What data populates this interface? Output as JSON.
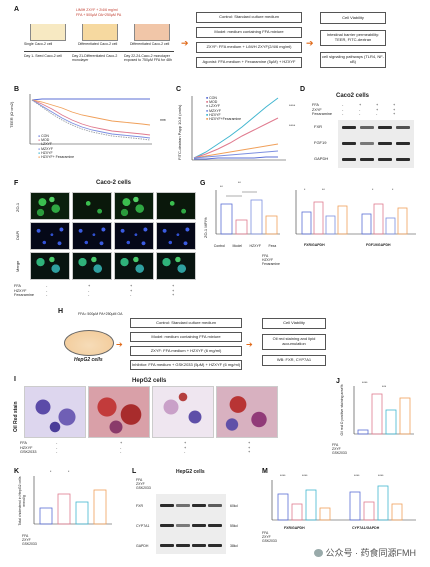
{
  "panels": {
    "A": "A",
    "B": "B",
    "C": "C",
    "D": "D",
    "F": "F",
    "G": "G",
    "H": "H",
    "I": "I",
    "J": "J",
    "K": "K",
    "L": "L",
    "M": "M"
  },
  "panelA": {
    "treat1": "LIMIH ZXYF + 2/4/6 mg/ml",
    "treat2": "FFA + 500μM OA+250μM PA",
    "steps": [
      "Single Caco-2 cell",
      "Differentiated Caco-2 cell",
      "Differentiated Caco-2 cell"
    ],
    "days": [
      "Day 1- Seed Caco-2 cell",
      "Day 21-Differentiated Caco-2 monolayer",
      "Day 22-24-Caco-2 monolayer exposed to 750μM FFA for 48h"
    ],
    "groups": [
      "Control: Standard culture medium",
      "Model: medium containing FFA mixture",
      "ZXYF: FFA medium + L/M/H ZXYF(2/4/6 mg/ml)",
      "Agonist: FFA medium + Fexaramine (5μM) + HZXYF"
    ],
    "outputs": [
      "Cell Viability",
      "Intestinal barrier permeability: TEER, FITC-dextran",
      "cell signaling pathways (TLR4, NF-κB)"
    ]
  },
  "panelB": {
    "ylabel": "TEER (Ω·cm2)",
    "legend": [
      "CON",
      "MOD",
      "LZXYF",
      "MZXYF",
      "HZXYF",
      "HZXYF+ Fexaramine"
    ],
    "sig": "***"
  },
  "panelC": {
    "ylabel": "FITC-dextran Papp 10-6 (cm/s)",
    "legend": [
      "CON",
      "MOD",
      "LZXYF",
      "MZXYF",
      "HZXYF",
      "HZXYF+Fexaramine"
    ],
    "sig": [
      "****",
      "****"
    ]
  },
  "panelD": {
    "title": "Caco2 cells",
    "rows": [
      "FFA",
      "ZXYF",
      "Fexaramine"
    ],
    "signs": [
      [
        "-",
        "+",
        "+",
        "+"
      ],
      [
        "-",
        "-",
        "+",
        "+"
      ],
      [
        "-",
        "-",
        "-",
        "+"
      ]
    ],
    "bands": [
      "FXR",
      "FGF19",
      "GAPDH"
    ]
  },
  "panelF": {
    "title": "Caco-2 cells",
    "rows": [
      "ZO-1",
      "DAPI",
      "Merge"
    ],
    "cond": [
      "FFA",
      "HZXYF",
      "Fexaramine"
    ],
    "signs": [
      [
        "-",
        "+",
        "+",
        "+"
      ],
      [
        "-",
        "-",
        "+",
        "+"
      ],
      [
        "-",
        "-",
        "-",
        "+"
      ]
    ]
  },
  "panelG": {
    "ylabel": "ZO-1 MFI%",
    "cats": [
      "Control",
      "Model",
      "HZXYF",
      "Fexa"
    ],
    "xlabels": [
      "FXR/GAPDH",
      "FGF19/GAPDH"
    ],
    "cond": [
      "FFA",
      "HZXYF",
      "Fexaramine"
    ],
    "sig": [
      "**",
      "**",
      "*",
      "**",
      "*",
      "*"
    ]
  },
  "panelH": {
    "treat": "FFA= 500μM PA+250μM OA",
    "cells": "HepG2 cells",
    "groups": [
      "Control: Standard culture medium",
      "Model: medium containing FFA mixture",
      "ZXYF: FFA medium + HZXYF (6 mg/ml)",
      "Inhibitor: FFA medium + GSK2033 (5μM) + HZXYF (6 mg/ml)"
    ],
    "outputs": [
      "Cell Viability",
      "Oil red staining and lipid accumulation",
      "WB: FXR, CYP7A1"
    ]
  },
  "panelI": {
    "title": "HepG2 cells",
    "ylabel": "Oil Red stain",
    "cond": [
      "FFA",
      "HZXYF",
      "GSK2033"
    ],
    "signs": [
      [
        "-",
        "+",
        "+",
        "+"
      ],
      [
        "-",
        "-",
        "+",
        "+"
      ],
      [
        "-",
        "-",
        "-",
        "+"
      ]
    ]
  },
  "panelJ": {
    "ylabel": "Oil red O positive staining area%",
    "cond": [
      "FFA",
      "ZXYF",
      "GSK2033"
    ],
    "sig": [
      "****",
      "***"
    ]
  },
  "panelK": {
    "ylabel": "Total cholesterol in HepG2 cells mmol/g",
    "cond": [
      "FFA",
      "ZXYF",
      "GSK2033"
    ],
    "sig": [
      "*",
      "*"
    ]
  },
  "panelL": {
    "title": "HepG2 cells",
    "rows": [
      "FFA",
      "ZXYF",
      "GSK2033"
    ],
    "bands": [
      "FXR",
      "CYP7A1",
      "GAPDH"
    ],
    "sizes": [
      "60kd",
      "55kd",
      "38kd"
    ]
  },
  "panelM": {
    "xlabels": [
      "FXR/GAPDH",
      "CYP7A1/GAPDH"
    ],
    "cond": [
      "FFA",
      "ZXYF",
      "GSK2033"
    ],
    "sig": [
      "****",
      "****",
      "****",
      "****"
    ]
  },
  "watermark": "公众号 · 药食同源FMH",
  "colors": {
    "con": "#5b6fd6",
    "mod": "#e07a8e",
    "zxyf": "#7c8fe0",
    "fexa": "#f0a05a",
    "hz": "#42b6d0",
    "lz": "#9aa0a6"
  }
}
